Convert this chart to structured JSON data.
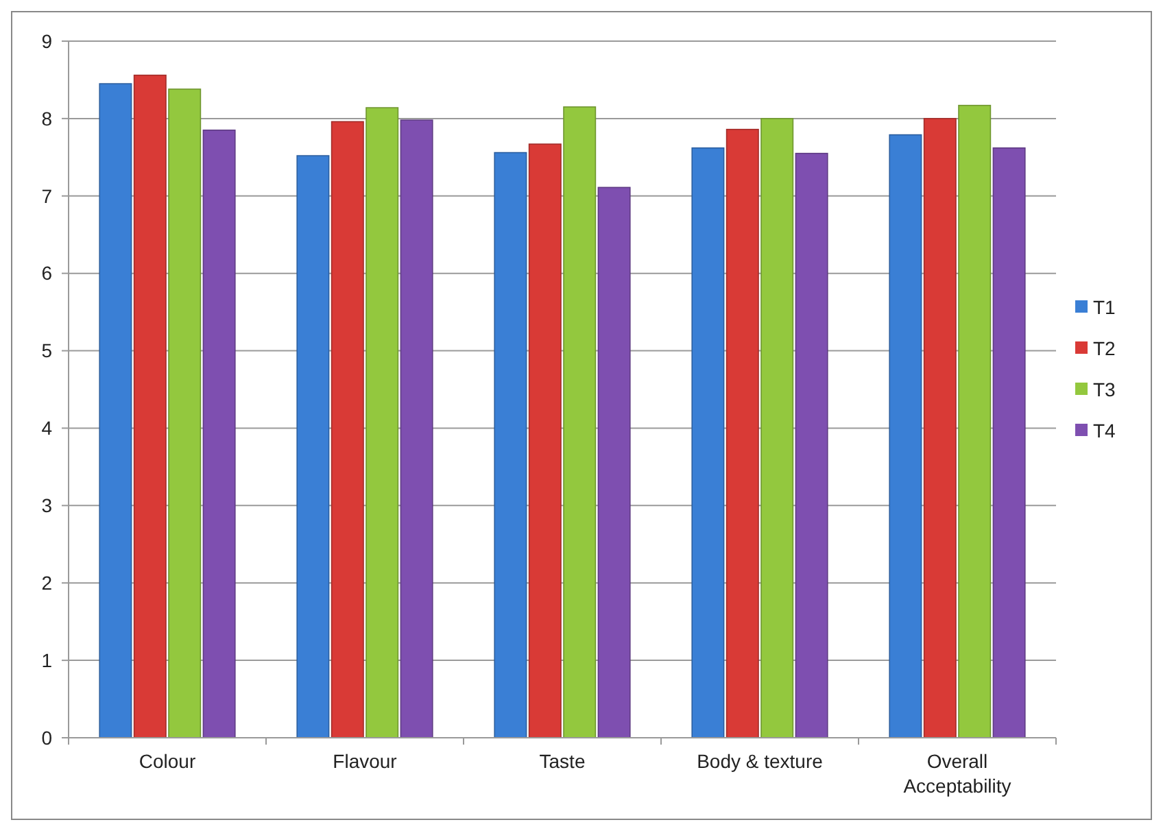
{
  "chart_data": {
    "type": "bar",
    "categories": [
      "Colour",
      "Flavour",
      "Taste",
      "Body & texture",
      "Overall Acceptability"
    ],
    "series": [
      {
        "name": "T1",
        "color": "#3a7fd5",
        "values": [
          8.45,
          7.52,
          7.56,
          7.62,
          7.79
        ]
      },
      {
        "name": "T2",
        "color": "#d93a36",
        "values": [
          8.56,
          7.96,
          7.67,
          7.86,
          8.0
        ]
      },
      {
        "name": "T3",
        "color": "#93c83e",
        "values": [
          8.38,
          8.14,
          8.15,
          8.0,
          8.17
        ]
      },
      {
        "name": "T4",
        "color": "#7e4fb0",
        "values": [
          7.85,
          7.98,
          7.11,
          7.55,
          7.62
        ]
      }
    ],
    "ylim": [
      0,
      9
    ],
    "yticks": [
      0,
      1,
      2,
      3,
      4,
      5,
      6,
      7,
      8,
      9
    ],
    "grid": "y",
    "legend": "right"
  }
}
